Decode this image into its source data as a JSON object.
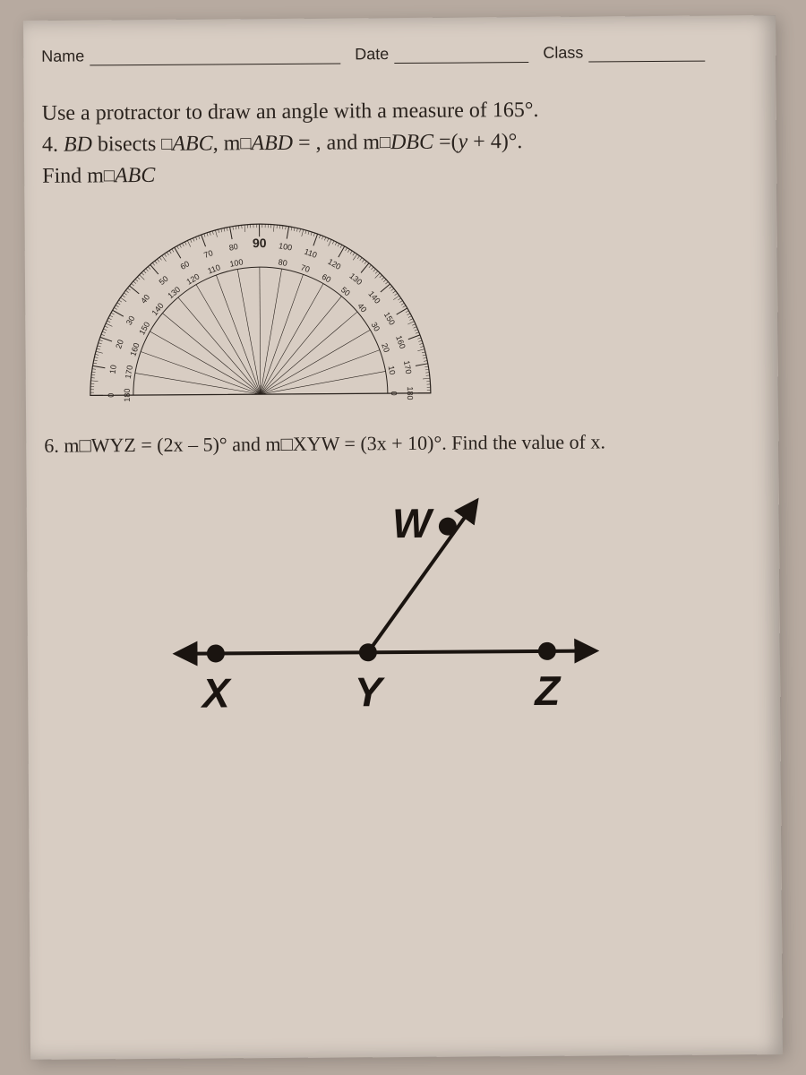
{
  "header": {
    "name_label": "Name",
    "date_label": "Date",
    "class_label": "Class"
  },
  "intro": "Use a protractor to draw an angle with a measure of 165°.",
  "q4": {
    "prefix_num": "4. ",
    "line1_a": "BD",
    "line1_b": " bisects □",
    "line1_c": "ABC",
    "line1_d": ", m□",
    "line1_e": "ABD",
    "line1_f": " = , and m□",
    "line1_g": "DBC",
    "line1_h": " =(y + 4)°.",
    "line2_a": "Find m□",
    "line2_b": "ABC"
  },
  "protractor": {
    "outer": [
      0,
      10,
      20,
      30,
      40,
      50,
      60,
      70,
      80,
      90,
      100,
      110,
      120,
      130,
      140,
      150,
      160,
      170,
      180
    ],
    "inner": [
      180,
      170,
      160,
      150,
      140,
      130,
      120,
      110,
      100,
      90,
      80,
      70,
      60,
      50,
      40,
      30,
      20,
      10,
      0
    ],
    "colors": {
      "stroke": "#2a231e",
      "fill": "#d8cdc3"
    }
  },
  "q6": {
    "prefix": "6. m□",
    "a": "WYZ",
    "mid1": " = (2x – 5)° and m□",
    "b": "XYW",
    "mid2": " = (3x + 10)°. Find the value of ",
    "c": "x",
    "end": "."
  },
  "diagram": {
    "labels": {
      "W": "W",
      "X": "X",
      "Y": "Y",
      "Z": "Z"
    },
    "stroke": "#1a1410",
    "dot": "#1a1410",
    "dot_r": 10,
    "font_family": "Arial, sans-serif",
    "font_size": 46,
    "font_style": "italic"
  }
}
